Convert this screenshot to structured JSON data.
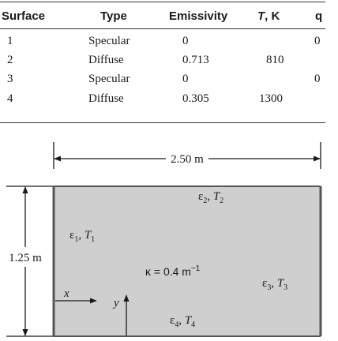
{
  "table": {
    "headers": {
      "surface": "Surface",
      "type": "Type",
      "emissivity": "Emissivity",
      "t_prefix": "T",
      "t_suffix": ", K",
      "q": "q"
    },
    "rows": [
      {
        "surface": "1",
        "type": "Specular",
        "emissivity": "0",
        "t": "",
        "q": "0"
      },
      {
        "surface": "2",
        "type": "Diffuse",
        "emissivity": "0.713",
        "t": "810",
        "q": ""
      },
      {
        "surface": "3",
        "type": "Specular",
        "emissivity": "0",
        "t": "",
        "q": "0"
      },
      {
        "surface": "4",
        "type": "Diffuse",
        "emissivity": "0.305",
        "t": "1300",
        "q": ""
      }
    ]
  },
  "figure": {
    "width_label": "2.50 m",
    "height_label": "1.25 m",
    "kappa_label": "κ = 0.4 m",
    "kappa_exp": "−1",
    "x_label": "x",
    "y_label": "y",
    "surface_labels": [
      {
        "eps": "ε",
        "sub": "1",
        "sep": ", ",
        "t": "T",
        "tsub": "1"
      },
      {
        "eps": "ε",
        "sub": "2",
        "sep": ", ",
        "t": "T",
        "tsub": "2"
      },
      {
        "eps": "ε",
        "sub": "3",
        "sep": ", ",
        "t": "T",
        "tsub": "3"
      },
      {
        "eps": "ε",
        "sub": "4",
        "sep": ", ",
        "t": "T",
        "tsub": "4"
      }
    ],
    "colors": {
      "medium": "#cfcfcf",
      "wall": "#555555",
      "line": "#1a1a1a"
    }
  }
}
